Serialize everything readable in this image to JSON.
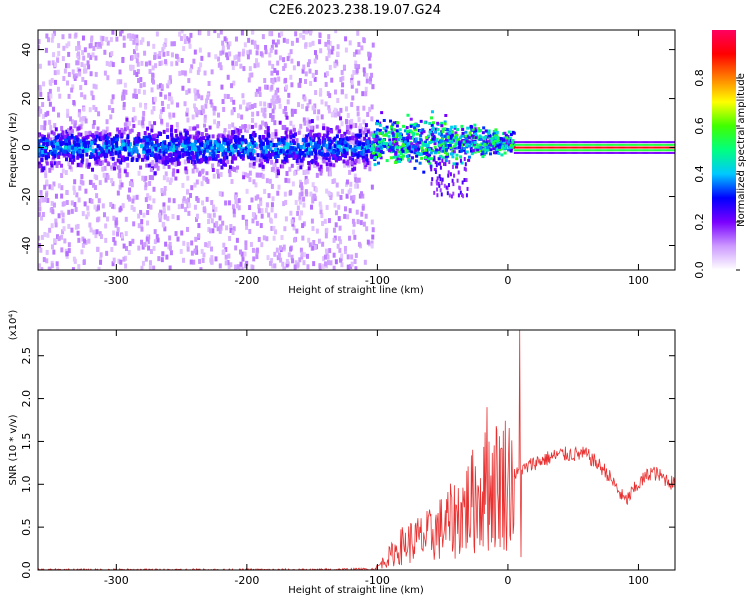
{
  "title": "C2E6.2023.238.19.07.G24",
  "chart_data": [
    {
      "type": "heatmap",
      "xlabel": "Height of straight line (km)",
      "ylabel": "Frequency (Hz)",
      "xlim": [
        -360,
        128
      ],
      "ylim": [
        -50,
        48
      ],
      "xticks": [
        -300,
        -200,
        -100,
        0,
        100
      ],
      "yticks": [
        -40,
        -20,
        0,
        20,
        40
      ],
      "colorbar": {
        "label": "Normalized spectral amplitude",
        "range": [
          0,
          1
        ],
        "ticks": [
          "0.0",
          "0.2",
          "0.4",
          "0.6",
          "0.8"
        ],
        "colors": [
          "#ffffff",
          "#cc99ff",
          "#7a00ff",
          "#0000ff",
          "#00c8ff",
          "#00ff80",
          "#40ff00",
          "#ffff00",
          "#ff8000",
          "#ff0000",
          "#ff0060"
        ]
      },
      "regions": [
        {
          "x": [
            -360,
            -103
          ],
          "frequency_spread": [
            -50,
            48
          ],
          "core_band": [
            -5,
            5
          ],
          "amplitude": "low"
        },
        {
          "x": [
            -103,
            5
          ],
          "frequency_center": 2,
          "frequency_band": [
            -10,
            10
          ],
          "amplitude": "medium"
        },
        {
          "x": [
            5,
            128
          ],
          "frequency_center": 0,
          "frequency_band": [
            -2,
            2
          ],
          "amplitude": "high"
        }
      ]
    },
    {
      "type": "line",
      "xlabel": "Height of straight line (km)",
      "ylabel": "SNR (10 * v/v)",
      "y_multiplier": "(x10⁴)",
      "xlim": [
        -360,
        128
      ],
      "ylim": [
        0,
        2.8
      ],
      "xticks": [
        -300,
        -200,
        -100,
        0,
        100
      ],
      "yticks": [
        "0.0",
        "0.5",
        "1.0",
        "1.5",
        "2.0",
        "2.5"
      ],
      "color": "#e83030",
      "profile": {
        "x": [
          -360,
          -150,
          -102,
          -95,
          -80,
          -60,
          -40,
          -20,
          -10,
          0,
          10,
          20,
          40,
          60,
          75,
          90,
          100,
          110,
          128
        ],
        "y": [
          0.0,
          0.0,
          0.01,
          0.1,
          0.3,
          0.4,
          0.6,
          0.9,
          1.0,
          1.05,
          1.15,
          1.25,
          1.35,
          1.35,
          1.15,
          0.8,
          1.0,
          1.15,
          1.0
        ]
      },
      "spikes": [
        {
          "x": -16,
          "y": 1.9
        },
        {
          "x": 9,
          "y": 2.8
        },
        {
          "x": 10,
          "y": 0.15
        }
      ]
    }
  ]
}
